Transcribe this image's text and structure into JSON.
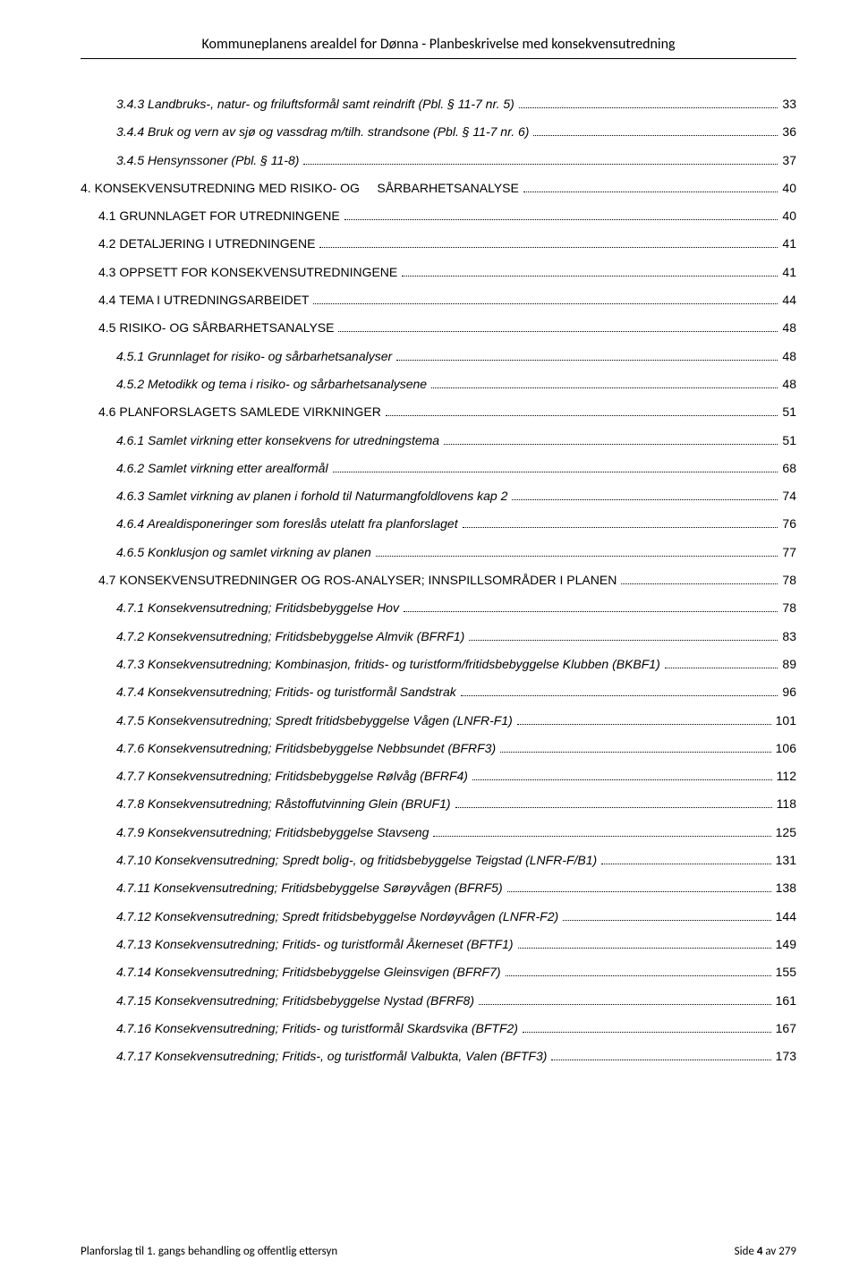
{
  "header": {
    "title": "Kommuneplanens arealdel for Dønna - Planbeskrivelse med konsekvensutredning"
  },
  "toc": {
    "entries": [
      {
        "level": 2,
        "style": "italic",
        "text": "3.4.3 Landbruks-, natur- og friluftsformål samt reindrift (Pbl. § 11-7 nr. 5)",
        "page": "33"
      },
      {
        "level": 2,
        "style": "italic",
        "text": "3.4.4 Bruk og vern av sjø og vassdrag m/tilh. strandsone (Pbl. § 11-7 nr. 6)",
        "page": "36"
      },
      {
        "level": 2,
        "style": "italic",
        "text": "3.4.5 Hensynssoner (Pbl. § 11-8)",
        "page": "37"
      },
      {
        "level": 0,
        "style": "plain",
        "text": "4. KONSEKVENSUTREDNING MED RISIKO- OG     SÅRBARHETSANALYSE",
        "page": "40"
      },
      {
        "level": 1,
        "style": "caps",
        "text": "4.1 GRUNNLAGET FOR UTREDNINGENE",
        "page": "40"
      },
      {
        "level": 1,
        "style": "caps",
        "text": "4.2 DETALJERING I UTREDNINGENE",
        "page": "41"
      },
      {
        "level": 1,
        "style": "caps",
        "text": "4.3 OPPSETT FOR KONSEKVENSUTREDNINGENE",
        "page": "41"
      },
      {
        "level": 1,
        "style": "caps",
        "text": "4.4 TEMA I UTREDNINGSARBEIDET",
        "page": "44"
      },
      {
        "level": 1,
        "style": "caps",
        "text": "4.5 RISIKO- OG SÅRBARHETSANALYSE",
        "page": "48"
      },
      {
        "level": 2,
        "style": "italic",
        "text": "4.5.1 Grunnlaget for risiko- og sårbarhetsanalyser",
        "page": "48"
      },
      {
        "level": 2,
        "style": "italic",
        "text": "4.5.2 Metodikk og tema i risiko- og sårbarhetsanalysene",
        "page": "48"
      },
      {
        "level": 1,
        "style": "caps",
        "text": "4.6 PLANFORSLAGETS SAMLEDE VIRKNINGER",
        "page": "51"
      },
      {
        "level": 2,
        "style": "italic",
        "text": "4.6.1 Samlet virkning etter konsekvens for utredningstema",
        "page": "51"
      },
      {
        "level": 2,
        "style": "italic",
        "text": "4.6.2 Samlet virkning etter arealformål",
        "page": "68"
      },
      {
        "level": 2,
        "style": "italic",
        "text": "4.6.3 Samlet virkning av planen i forhold til Naturmangfoldlovens kap 2",
        "page": "74"
      },
      {
        "level": 2,
        "style": "italic",
        "text": "4.6.4 Arealdisponeringer som foreslås utelatt fra planforslaget",
        "page": "76"
      },
      {
        "level": 2,
        "style": "italic",
        "text": "4.6.5 Konklusjon og samlet virkning av planen",
        "page": "77"
      },
      {
        "level": 1,
        "style": "caps",
        "text": "4.7 KONSEKVENSUTREDNINGER OG ROS-ANALYSER; INNSPILLSOMRÅDER I PLANEN",
        "page": "78"
      },
      {
        "level": 2,
        "style": "italic",
        "text": "4.7.1 Konsekvensutredning; Fritidsbebyggelse Hov",
        "page": "78"
      },
      {
        "level": 2,
        "style": "italic",
        "text": "4.7.2 Konsekvensutredning; Fritidsbebyggelse Almvik (BFRF1)",
        "page": "83"
      },
      {
        "level": 2,
        "style": "italic",
        "text": "4.7.3 Konsekvensutredning; Kombinasjon, fritids- og turistform/fritidsbebyggelse Klubben (BKBF1)",
        "page": "89"
      },
      {
        "level": 2,
        "style": "italic",
        "text": "4.7.4 Konsekvensutredning; Fritids- og turistformål Sandstrak",
        "page": "96"
      },
      {
        "level": 2,
        "style": "italic",
        "text": "4.7.5 Konsekvensutredning; Spredt fritidsbebyggelse Vågen (LNFR-F1)",
        "page": "101"
      },
      {
        "level": 2,
        "style": "italic",
        "text": "4.7.6 Konsekvensutredning; Fritidsbebyggelse Nebbsundet (BFRF3)",
        "page": "106"
      },
      {
        "level": 2,
        "style": "italic",
        "text": "4.7.7 Konsekvensutredning; Fritidsbebyggelse Rølvåg (BFRF4)",
        "page": "112"
      },
      {
        "level": 2,
        "style": "italic",
        "text": "4.7.8 Konsekvensutredning; Råstoffutvinning Glein (BRUF1)",
        "page": "118"
      },
      {
        "level": 2,
        "style": "italic",
        "text": "4.7.9 Konsekvensutredning; Fritidsbebyggelse Stavseng",
        "page": "125"
      },
      {
        "level": 2,
        "style": "italic",
        "text": "4.7.10 Konsekvensutredning; Spredt bolig-, og fritidsbebyggelse Teigstad (LNFR-F/B1)",
        "page": "131"
      },
      {
        "level": 2,
        "style": "italic",
        "text": "4.7.11 Konsekvensutredning; Fritidsbebyggelse Sørøyvågen (BFRF5)",
        "page": "138"
      },
      {
        "level": 2,
        "style": "italic",
        "text": "4.7.12 Konsekvensutredning; Spredt fritidsbebyggelse Nordøyvågen (LNFR-F2)",
        "page": "144"
      },
      {
        "level": 2,
        "style": "italic",
        "text": "4.7.13 Konsekvensutredning; Fritids- og turistformål Åkerneset (BFTF1)",
        "page": "149"
      },
      {
        "level": 2,
        "style": "italic",
        "text": "4.7.14 Konsekvensutredning; Fritidsbebyggelse Gleinsvigen (BFRF7)",
        "page": "155"
      },
      {
        "level": 2,
        "style": "italic",
        "text": "4.7.15 Konsekvensutredning; Fritidsbebyggelse Nystad (BFRF8)",
        "page": "161"
      },
      {
        "level": 2,
        "style": "italic",
        "text": "4.7.16 Konsekvensutredning; Fritids- og turistformål Skardsvika (BFTF2)",
        "page": "167"
      },
      {
        "level": 2,
        "style": "italic",
        "text": "4.7.17 Konsekvensutredning; Fritids-, og turistformål Valbukta, Valen (BFTF3)",
        "page": "173"
      }
    ]
  },
  "footer": {
    "left": "Planforslag til 1. gangs behandling og offentlig ettersyn",
    "right_prefix": "Side ",
    "right_page": "4",
    "right_suffix": " av 279"
  }
}
